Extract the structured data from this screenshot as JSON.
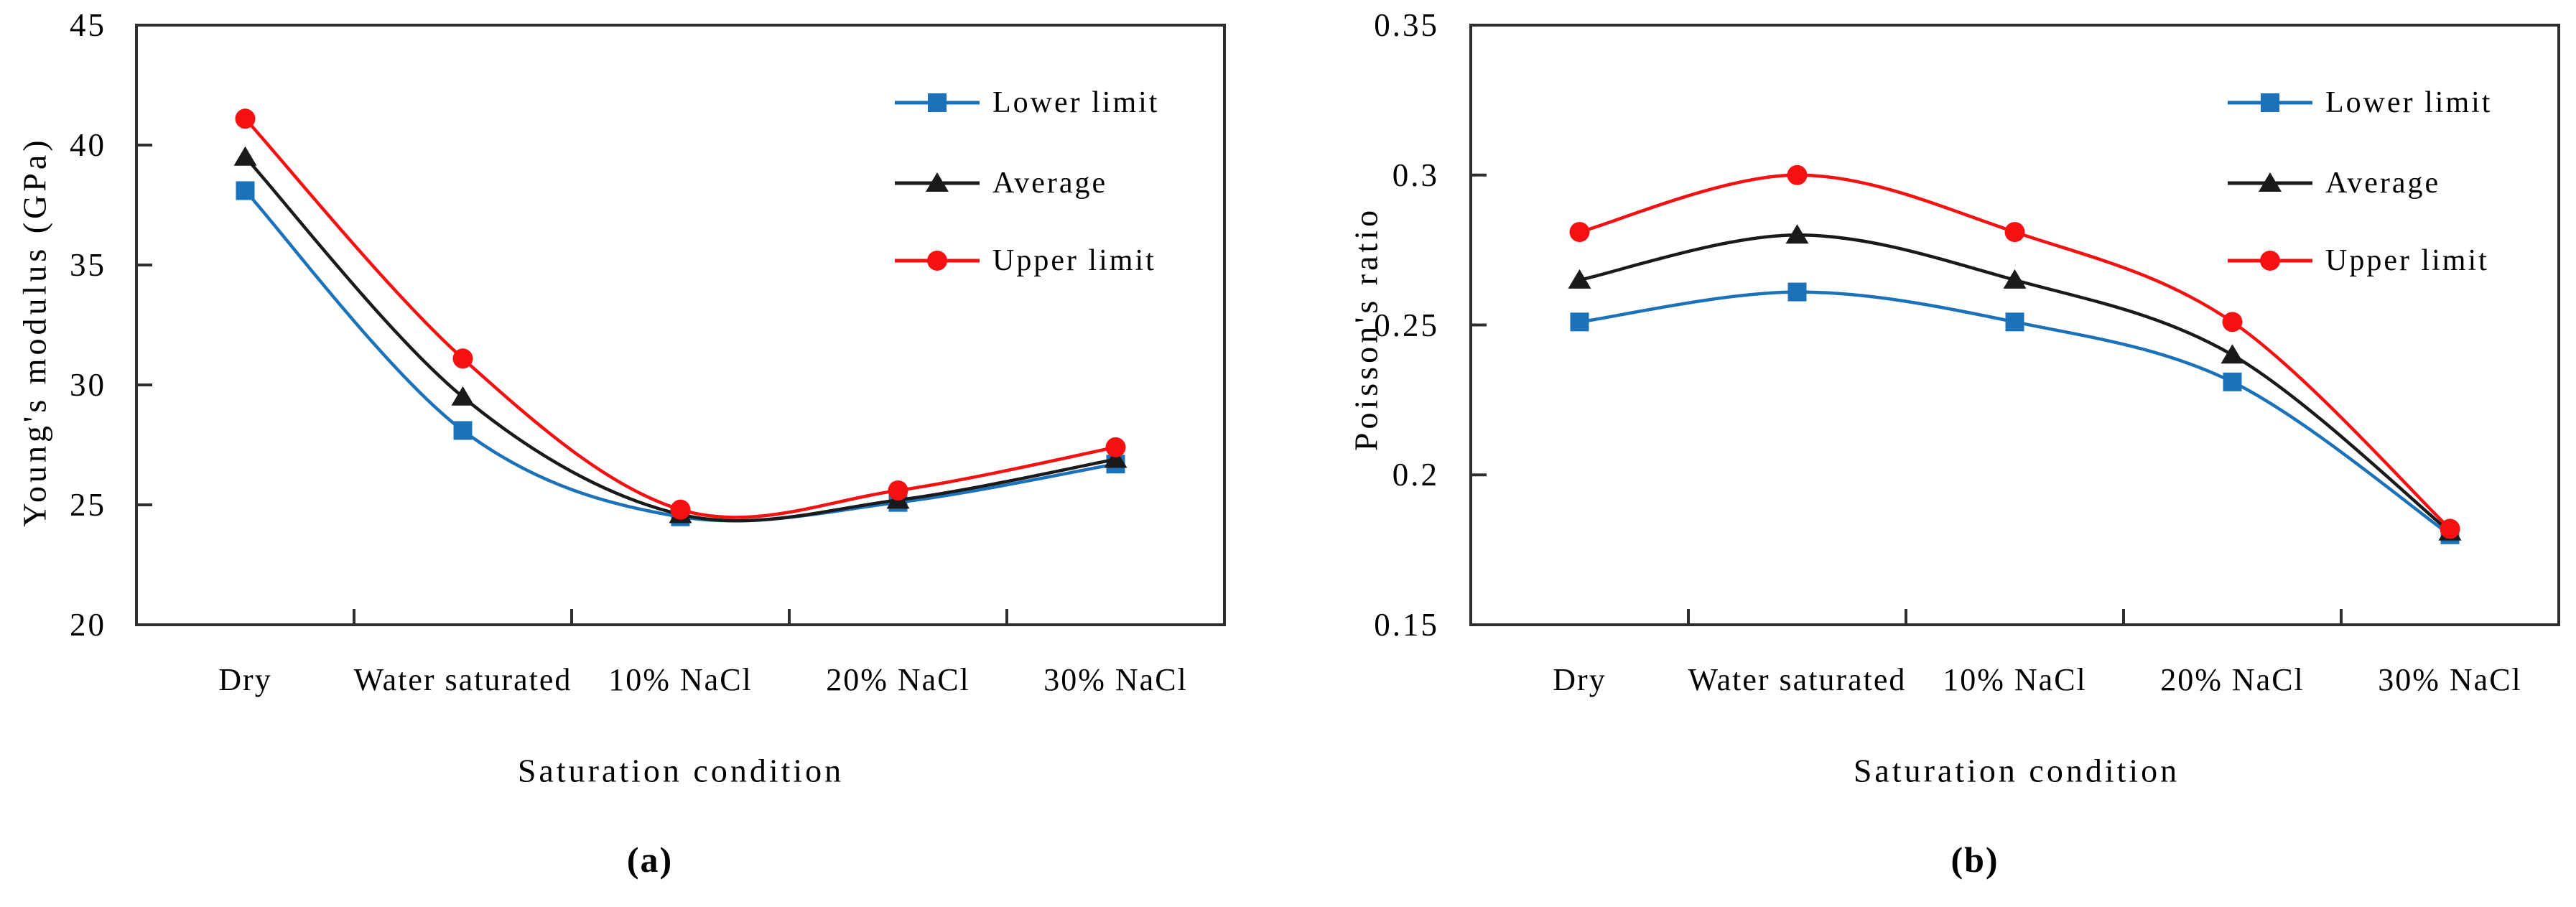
{
  "figure": {
    "background": "#ffffff",
    "colors": {
      "lower": "#1c72b8",
      "average": "#1a1a1a",
      "upper": "#f51111",
      "axis": "#2e2e2e",
      "text": "#000000"
    },
    "legend": [
      {
        "label": "Lower limit",
        "marker": "square",
        "color_key": "lower"
      },
      {
        "label": "Average",
        "marker": "triangle",
        "color_key": "average"
      },
      {
        "label": "Upper limit",
        "marker": "circle",
        "color_key": "upper"
      }
    ]
  },
  "chart_data": [
    {
      "type": "line",
      "caption": "(a)",
      "ylabel": "Young's modulus (GPa)",
      "xlabel": "Saturation condition",
      "categories": [
        "Dry",
        "Water saturated",
        "10% NaCl",
        "20% NaCl",
        "30% NaCl"
      ],
      "ylim": [
        20,
        45
      ],
      "yticks": [
        20,
        25,
        30,
        35,
        40,
        45
      ],
      "grid": false,
      "legend_position": "inside-top-right",
      "series": [
        {
          "name": "Lower limit",
          "marker": "square",
          "color_key": "lower",
          "values": [
            38.1,
            28.1,
            24.5,
            25.1,
            26.7
          ]
        },
        {
          "name": "Average",
          "marker": "triangle",
          "color_key": "average",
          "values": [
            39.5,
            29.5,
            24.6,
            25.2,
            26.9
          ]
        },
        {
          "name": "Upper limit",
          "marker": "circle",
          "color_key": "upper",
          "values": [
            41.1,
            31.1,
            24.8,
            25.6,
            27.4
          ]
        }
      ]
    },
    {
      "type": "line",
      "caption": "(b)",
      "ylabel": "Poisson's ratio",
      "xlabel": "Saturation condition",
      "categories": [
        "Dry",
        "Water saturated",
        "10% NaCl",
        "20% NaCl",
        "30% NaCl"
      ],
      "ylim": [
        0.15,
        0.35
      ],
      "yticks": [
        0.15,
        0.2,
        0.25,
        0.3,
        0.35
      ],
      "grid": false,
      "legend_position": "inside-top-right",
      "series": [
        {
          "name": "Lower limit",
          "marker": "square",
          "color_key": "lower",
          "values": [
            0.251,
            0.261,
            0.251,
            0.231,
            0.18
          ]
        },
        {
          "name": "Average",
          "marker": "triangle",
          "color_key": "average",
          "values": [
            0.265,
            0.28,
            0.265,
            0.24,
            0.181
          ]
        },
        {
          "name": "Upper limit",
          "marker": "circle",
          "color_key": "upper",
          "values": [
            0.281,
            0.3,
            0.281,
            0.251,
            0.182
          ]
        }
      ]
    }
  ]
}
